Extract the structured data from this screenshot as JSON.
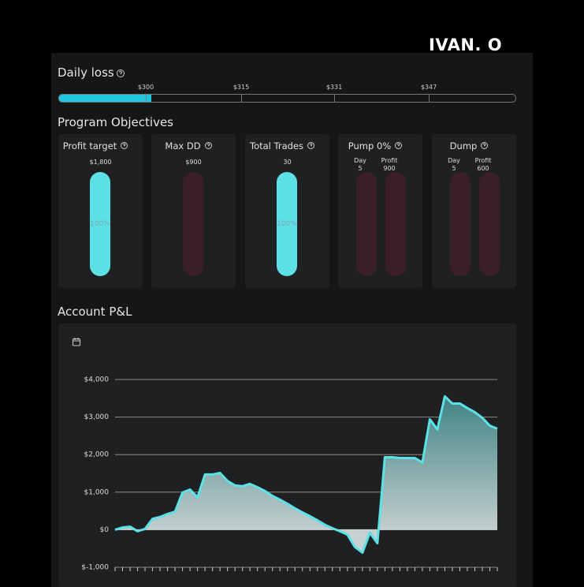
{
  "brand": "IVAN. O",
  "daily_loss": {
    "title": "Daily loss",
    "markers": [
      "$300",
      "$315",
      "$331",
      "$347"
    ]
  },
  "objectives": {
    "title": "Program Objectives",
    "cards": [
      {
        "title": "Profit target",
        "value": "$1,800",
        "progress": "100%"
      },
      {
        "title": "Max DD",
        "value": "$900"
      },
      {
        "title": "Total Trades",
        "value": "30",
        "progress": "100%"
      },
      {
        "title": "Pump 0%",
        "columns": [
          {
            "label": "Day",
            "value": "5"
          },
          {
            "label": "Profit",
            "value": "900"
          }
        ]
      },
      {
        "title": "Dump",
        "columns": [
          {
            "label": "Day",
            "value": "5"
          },
          {
            "label": "Profit",
            "value": "600"
          }
        ]
      }
    ]
  },
  "pnl_title": "Account P&L",
  "chart_data": {
    "type": "area",
    "color": "#5ce1e6",
    "ylim": [
      -1000,
      4000
    ],
    "yticks": [
      {
        "value": -1000,
        "label": "$-1,000"
      },
      {
        "value": 0,
        "label": "$0"
      },
      {
        "value": 1000,
        "label": "$1,000"
      },
      {
        "value": 2000,
        "label": "$2,000"
      },
      {
        "value": 3000,
        "label": "$3,000"
      },
      {
        "value": 4000,
        "label": "$4,000"
      }
    ],
    "values": [
      0,
      60,
      80,
      -40,
      20,
      290,
      340,
      420,
      480,
      990,
      1070,
      860,
      1470,
      1470,
      1510,
      1300,
      1180,
      1160,
      1220,
      1130,
      1030,
      900,
      800,
      690,
      570,
      460,
      360,
      250,
      130,
      40,
      -40,
      -130,
      -460,
      -610,
      -80,
      -360,
      1930,
      1930,
      1910,
      1910,
      1910,
      1790,
      2940,
      2670,
      3550,
      3360,
      3360,
      3240,
      3130,
      2980,
      2770,
      2690
    ],
    "grid": true
  }
}
